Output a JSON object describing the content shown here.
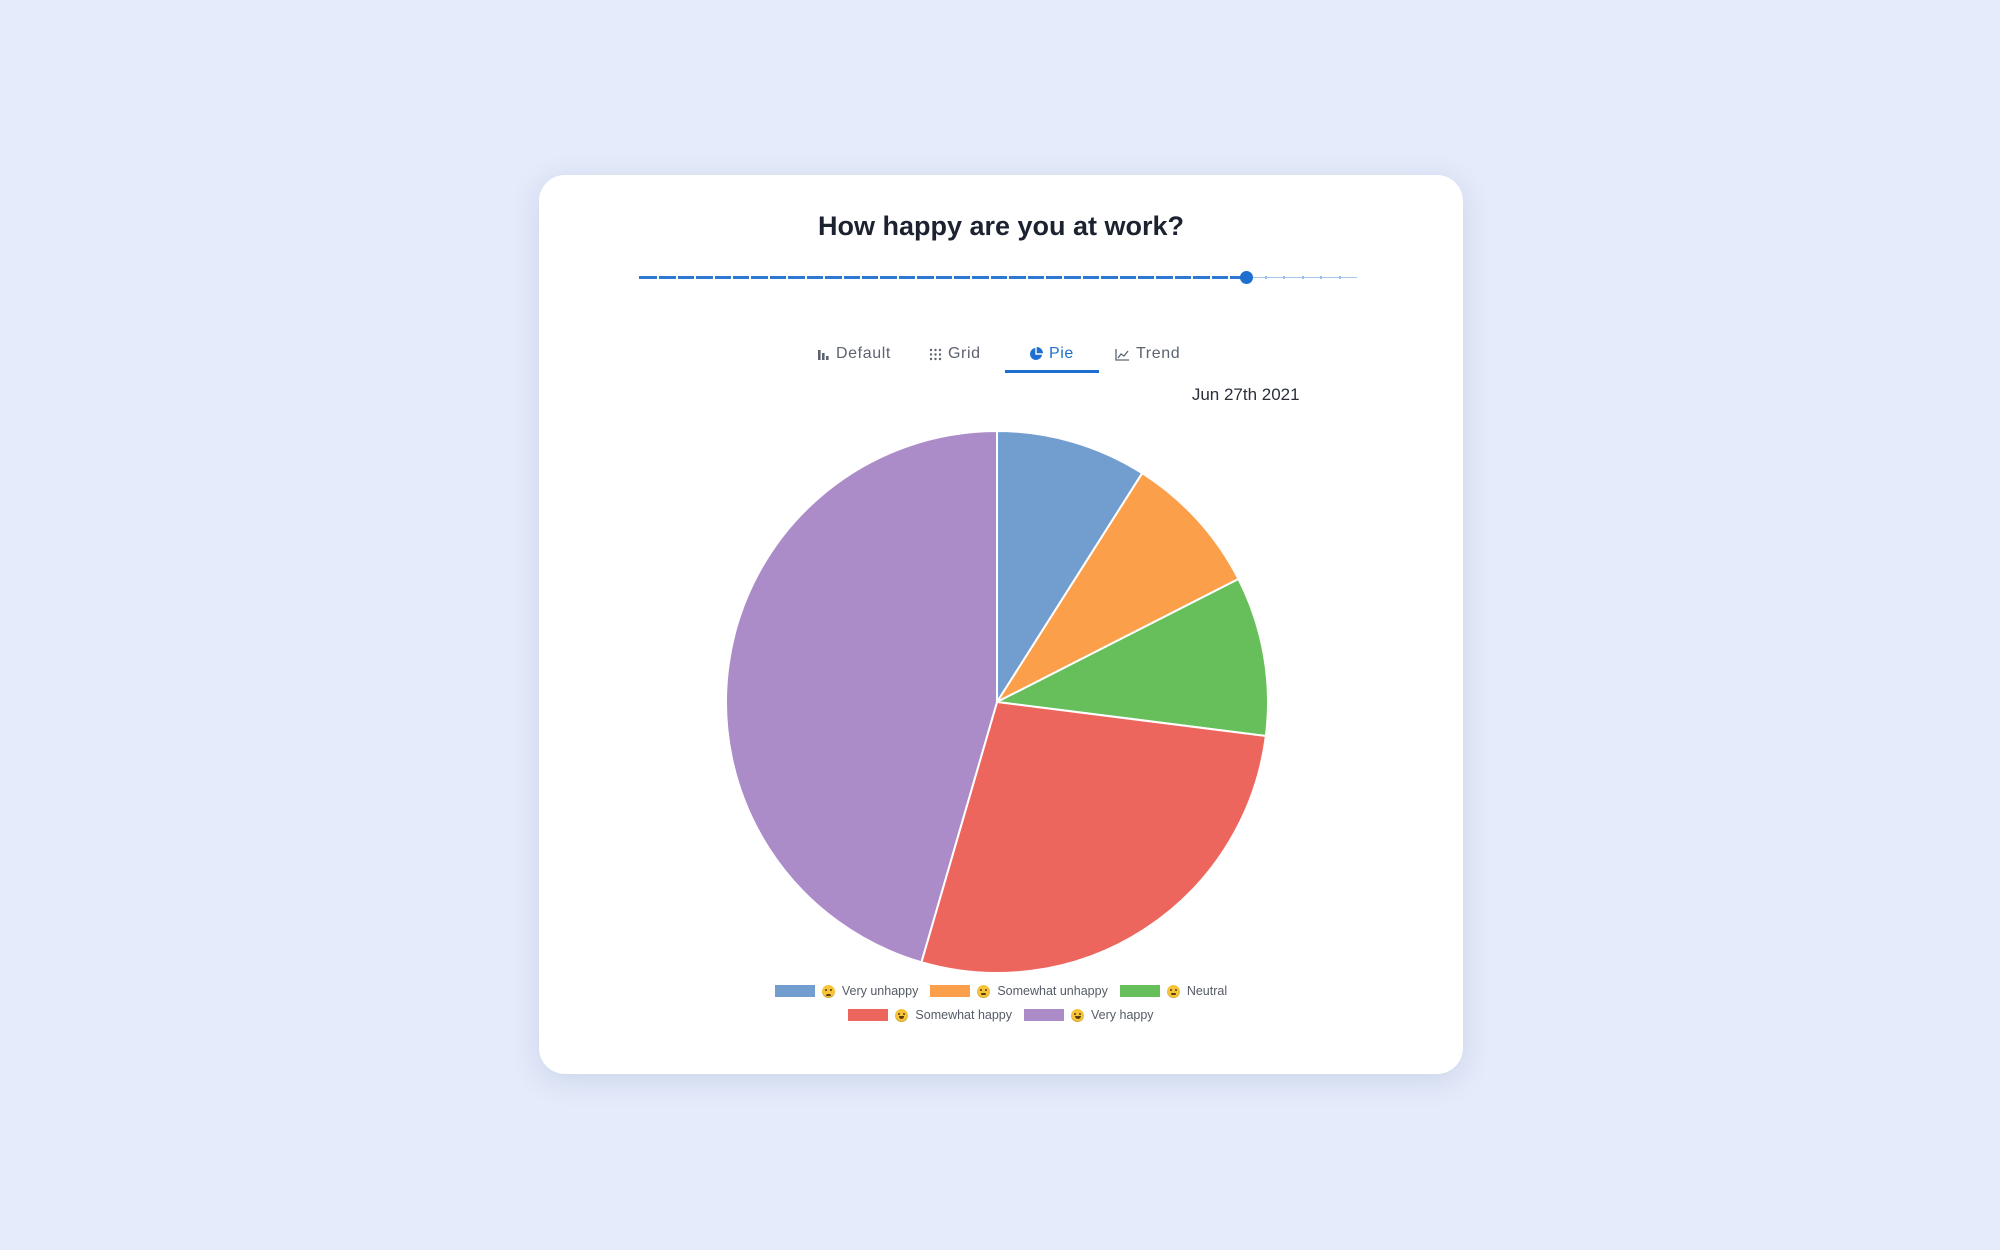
{
  "card": {
    "title": "How happy are you at work?"
  },
  "slider": {
    "date_label": "Jun 27th 2021",
    "position_fraction": 0.845,
    "ticks": 39
  },
  "tabs": [
    {
      "label": "Default",
      "icon": "bar-chart-icon",
      "active": false
    },
    {
      "label": "Grid",
      "icon": "grid-icon",
      "active": false
    },
    {
      "label": "Pie",
      "icon": "pie-chart-icon",
      "active": true
    },
    {
      "label": "Trend",
      "icon": "line-chart-icon",
      "active": false
    }
  ],
  "colors": {
    "accent": "#1f6fd0",
    "very_unhappy": "#729ecf",
    "somewhat_unhappy": "#fc9f4b",
    "neutral": "#67bf5b",
    "somewhat_happy": "#ed665e",
    "very_happy": "#ac8bc9"
  },
  "chart_data": {
    "type": "pie",
    "title": "How happy are you at work?",
    "categories": [
      "Very unhappy",
      "Somewhat unhappy",
      "Neutral",
      "Somewhat happy",
      "Very happy"
    ],
    "values": [
      9,
      8.5,
      9.5,
      27.5,
      45.5
    ],
    "colors": [
      "#729ecf",
      "#fc9f4b",
      "#67bf5b",
      "#ed665e",
      "#ac8bc9"
    ],
    "legend_position": "bottom"
  }
}
